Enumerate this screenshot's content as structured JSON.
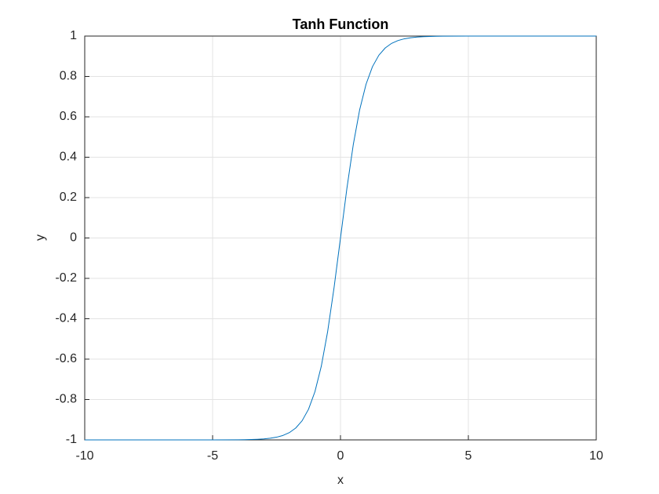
{
  "chart_data": {
    "type": "line",
    "title": "Tanh Function",
    "x_label": "x",
    "y_label": "y",
    "x": [
      -10,
      -9,
      -8,
      -7,
      -6,
      -5,
      -4,
      -3.75,
      -3.5,
      -3.25,
      -3,
      -2.75,
      -2.5,
      -2.25,
      -2,
      -1.75,
      -1.5,
      -1.25,
      -1,
      -0.75,
      -0.5,
      -0.25,
      0,
      0.25,
      0.5,
      0.75,
      1,
      1.25,
      1.5,
      1.75,
      2,
      2.25,
      2.5,
      2.75,
      3,
      3.25,
      3.5,
      3.75,
      4,
      5,
      6,
      7,
      8,
      9,
      10
    ],
    "values": [
      -1,
      -1,
      -1,
      -1,
      -1,
      -0.9999,
      -0.9993,
      -0.9989,
      -0.9982,
      -0.997,
      -0.9951,
      -0.9918,
      -0.9866,
      -0.978,
      -0.964,
      -0.9413,
      -0.9051,
      -0.8483,
      -0.7616,
      -0.6351,
      -0.4621,
      -0.2449,
      0,
      0.2449,
      0.4621,
      0.6351,
      0.7616,
      0.8483,
      0.9051,
      0.9413,
      0.964,
      0.978,
      0.9866,
      0.9918,
      0.9951,
      0.997,
      0.9982,
      0.9989,
      0.9993,
      0.9999,
      1,
      1,
      1,
      1,
      1
    ],
    "color": "#0072bd",
    "xlim": [
      -10,
      10
    ],
    "xticks": [
      -10,
      -5,
      0,
      5,
      10
    ],
    "ylim": [
      -1,
      1
    ],
    "yticks": [
      -1,
      -0.8,
      -0.6,
      -0.4,
      -0.2,
      0,
      0.2,
      0.4,
      0.6,
      0.8,
      1
    ],
    "grid": true
  }
}
